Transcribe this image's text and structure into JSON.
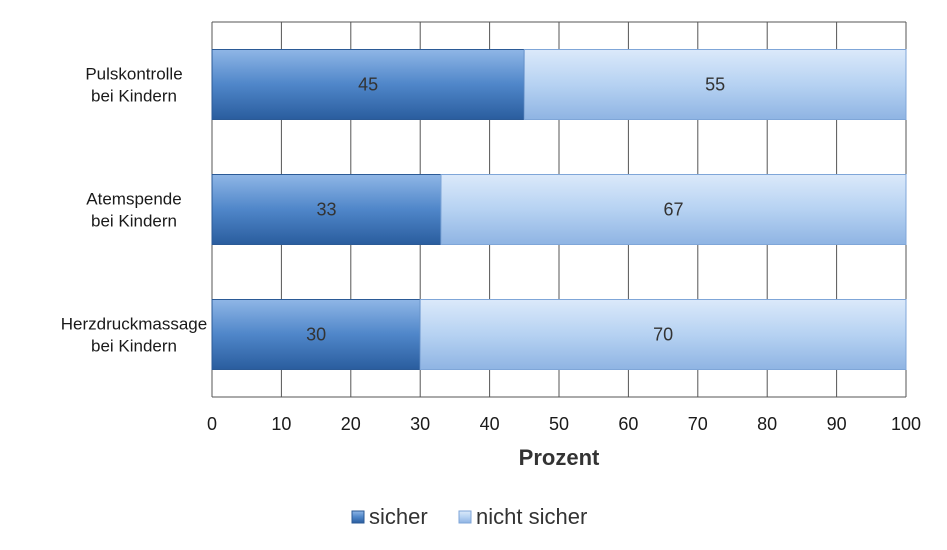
{
  "chart_data": {
    "type": "bar",
    "orientation": "horizontal",
    "stacked": true,
    "categories": [
      [
        "Pulskontrolle",
        "bei Kindern"
      ],
      [
        "Atemspende",
        "bei Kindern"
      ],
      [
        "Herzdruckmassage",
        "bei Kindern"
      ]
    ],
    "series": [
      {
        "name": "sicher",
        "values": [
          45,
          33,
          30
        ],
        "color": "#3f78bf"
      },
      {
        "name": "nicht sicher",
        "values": [
          55,
          67,
          70
        ],
        "color": "#a9c9f0"
      }
    ],
    "xlabel": "Prozent",
    "ylabel": "",
    "xlim": [
      0,
      100
    ],
    "xticks": [
      0,
      10,
      20,
      30,
      40,
      50,
      60,
      70,
      80,
      90,
      100
    ],
    "grid": true,
    "legend_position": "bottom"
  }
}
